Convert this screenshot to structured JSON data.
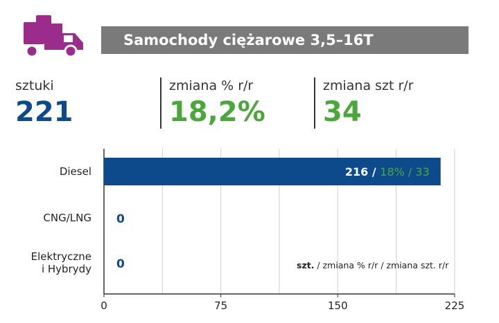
{
  "header": {
    "title": "Samochody ciężarowe 3,5–16T",
    "icon": "delivery-truck-icon",
    "icon_color": "#9b2c8c"
  },
  "stats": [
    {
      "label": "sztuki",
      "value": "221",
      "color": "#0d4a8c"
    },
    {
      "label": "zmiana % r/r",
      "value": "18,2%",
      "color": "#4aa83a"
    },
    {
      "label": "zmiana szt r/r",
      "value": "34",
      "color": "#4aa83a"
    }
  ],
  "legend_note": {
    "bold": "szt.",
    "rest": " / zmiana % r/r / zmiana szt. r/r"
  },
  "colors": {
    "bar": "#0d4a8c",
    "pct": "#4aa83a",
    "title_bg": "#7a7a7a"
  },
  "chart_data": {
    "type": "bar",
    "orientation": "horizontal",
    "categories": [
      "Diesel",
      "CNG/LNG",
      "Elektryczne i Hybrydy"
    ],
    "values": [
      216,
      0,
      0
    ],
    "data_labels": [
      {
        "count": "216",
        "pct": "18%",
        "change": "33"
      },
      {
        "count": "0"
      },
      {
        "count": "0"
      }
    ],
    "xlim": [
      0,
      225
    ],
    "x_ticks": [
      "0",
      "75",
      "150",
      "225"
    ],
    "grid": true
  }
}
